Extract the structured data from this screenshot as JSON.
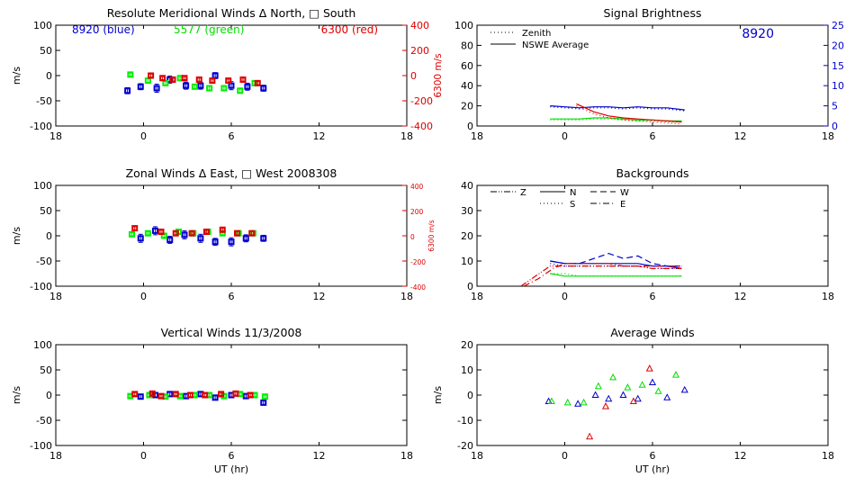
{
  "chart_data": [
    {
      "id": "meridional",
      "type": "scatter",
      "title": "Resolute Meridional Winds Δ North, □ South",
      "title_parts": [
        "Resolute Meridional Winds ",
        "Δ",
        " North, ",
        "□",
        " South"
      ],
      "xlabel": "",
      "ylabel": "m/s",
      "xlim": [
        -6,
        18
      ],
      "xtick_values": [
        -6,
        0,
        6,
        12,
        18
      ],
      "xticks": [
        "18",
        "0",
        "6",
        "12",
        "18"
      ],
      "ylim": [
        -100,
        100
      ],
      "yticks": [
        "100",
        "50",
        "0",
        "-50",
        "-100"
      ],
      "y2": {
        "label": "6300 m/s",
        "lim": [
          -400,
          400
        ],
        "ticks": [
          "400",
          "200",
          "0",
          "-200",
          "-400"
        ],
        "color": "#dd0000"
      },
      "annotations": [
        {
          "text": "8920 (blue)",
          "color": "#0000cc"
        },
        {
          "text": "5577 (green)",
          "color": "#00dd00"
        },
        {
          "text": "6300 (red)",
          "color": "#dd0000"
        }
      ],
      "series": [
        {
          "name": "8920 (blue)",
          "color": "#0000cc",
          "x": [
            -1.1,
            -0.2,
            0.9,
            1.8,
            2.9,
            3.9,
            4.9,
            6.0,
            7.1,
            8.2
          ],
          "y": [
            -30,
            -22,
            -25,
            -8,
            -20,
            -20,
            0,
            -20,
            -22,
            -25
          ],
          "err": [
            6,
            6,
            8,
            7,
            7,
            7,
            6,
            8,
            7,
            6
          ]
        },
        {
          "name": "5577 (green)",
          "color": "#00ee00",
          "x": [
            -0.9,
            0.3,
            1.5,
            2.5,
            3.5,
            4.5,
            5.5,
            6.6,
            7.6
          ],
          "y": [
            2,
            -10,
            -15,
            -5,
            -22,
            -25,
            -25,
            -30,
            -15
          ],
          "err": [
            3,
            4,
            4,
            4,
            4,
            4,
            4,
            4,
            4
          ]
        },
        {
          "name": "6300 (red)",
          "color": "#dd0000",
          "x": [
            0.5,
            1.3,
            2.0,
            2.8,
            3.8,
            4.7,
            5.8,
            6.8,
            7.8
          ],
          "y": [
            0,
            -5,
            -8,
            -5,
            -8,
            -10,
            -10,
            -8,
            -15
          ],
          "err": [
            3,
            3,
            3,
            3,
            3,
            3,
            3,
            3,
            3
          ]
        }
      ]
    },
    {
      "id": "brightness",
      "type": "line",
      "title": "Signal Brightness",
      "xlabel": "",
      "ylabel": "",
      "xlim": [
        -6,
        18
      ],
      "xtick_values": [
        -6,
        0,
        6,
        12,
        18
      ],
      "xticks": [
        "18",
        "0",
        "6",
        "12",
        "18"
      ],
      "ylim": [
        0,
        100
      ],
      "yticks": [
        "100",
        "80",
        "60",
        "40",
        "20",
        "0"
      ],
      "y2": {
        "label": "",
        "lim": [
          0,
          25
        ],
        "ticks": [
          "25",
          "20",
          "15",
          "10",
          "5",
          "0"
        ],
        "color": "#0000cc"
      },
      "annotations": [
        {
          "text": "8920",
          "color": "#0000cc"
        }
      ],
      "legend": [
        "Zenith",
        "NSWE Average"
      ],
      "series": [
        {
          "name": "8920 NSWE Average",
          "color": "#0000cc",
          "style": "solid",
          "x": [
            -1,
            0,
            1,
            2,
            3,
            4,
            5,
            6,
            7,
            8.2
          ],
          "y": [
            20,
            19,
            18,
            19,
            19,
            18,
            19,
            18,
            18,
            16
          ]
        },
        {
          "name": "8920 Zenith",
          "color": "#0000cc",
          "style": "dot",
          "x": [
            -1,
            0,
            1,
            2,
            3,
            4,
            5,
            6,
            7,
            8.2
          ],
          "y": [
            19,
            18,
            17,
            18,
            18,
            17,
            18,
            17,
            17,
            15
          ]
        },
        {
          "name": "5577 NSWE Average",
          "color": "#00dd00",
          "style": "solid",
          "x": [
            -1,
            0,
            1,
            2,
            3,
            4,
            5,
            6,
            7,
            8
          ],
          "y": [
            7,
            7,
            7,
            8,
            8,
            7,
            6,
            6,
            5,
            5
          ]
        },
        {
          "name": "5577 Zenith",
          "color": "#00dd00",
          "style": "dot",
          "x": [
            -1,
            0,
            1,
            2,
            3,
            4,
            5,
            6,
            7,
            8
          ],
          "y": [
            6,
            6,
            6,
            7,
            7,
            6,
            5,
            5,
            4,
            4
          ]
        },
        {
          "name": "6300 NSWE Average",
          "color": "#dd0000",
          "style": "solid",
          "x": [
            0.8,
            2,
            3,
            4,
            5,
            6,
            7,
            8
          ],
          "y": [
            22,
            14,
            10,
            8,
            7,
            6,
            5,
            4
          ]
        },
        {
          "name": "6300 Zenith",
          "color": "#dd0000",
          "style": "dot",
          "x": [
            0.8,
            2,
            3,
            4,
            5,
            6,
            7,
            8
          ],
          "y": [
            20,
            12,
            8,
            6,
            5,
            4,
            3,
            2
          ]
        }
      ]
    },
    {
      "id": "zonal",
      "type": "scatter",
      "title": "Zonal Winds Δ East, □ West 2008308",
      "title_parts": [
        "Zonal Winds ",
        "Δ",
        " East, ",
        "□",
        " West 2008308"
      ],
      "xlabel": "",
      "ylabel": "m/s",
      "xlim": [
        -6,
        18
      ],
      "xtick_values": [
        -6,
        0,
        6,
        12,
        18
      ],
      "xticks": [
        "18",
        "0",
        "6",
        "12",
        "18"
      ],
      "ylim": [
        -100,
        100
      ],
      "yticks": [
        "100",
        "50",
        "0",
        "-50",
        "-100"
      ],
      "y2": {
        "label": "6300 m/s",
        "lim": [
          -400,
          400
        ],
        "ticks": [
          "400",
          "200",
          "0",
          "-200",
          "-400"
        ],
        "color": "#dd0000"
      },
      "series": [
        {
          "name": "8920 (blue)",
          "color": "#0000cc",
          "x": [
            -0.2,
            0.8,
            1.8,
            2.8,
            3.9,
            4.9,
            6.0,
            7.0,
            8.2
          ],
          "y": [
            -5,
            10,
            -8,
            2,
            -5,
            -12,
            -12,
            -5,
            -5
          ],
          "err": [
            8,
            8,
            7,
            8,
            8,
            7,
            8,
            7,
            6
          ]
        },
        {
          "name": "5577 (green)",
          "color": "#00ee00",
          "x": [
            -0.8,
            0.3,
            1.4,
            2.4,
            3.4,
            4.4,
            5.4,
            6.5,
            7.5
          ],
          "y": [
            3,
            5,
            0,
            8,
            5,
            8,
            5,
            5,
            5
          ],
          "err": [
            3,
            3,
            3,
            3,
            3,
            3,
            3,
            3,
            3
          ]
        },
        {
          "name": "6300 (red)",
          "color": "#dd0000",
          "x": [
            -0.6,
            1.2,
            2.2,
            3.3,
            4.3,
            5.4,
            6.4,
            7.4
          ],
          "y": [
            15,
            8,
            5,
            5,
            8,
            12,
            5,
            5
          ],
          "err": [
            3,
            3,
            3,
            3,
            3,
            3,
            3,
            3
          ]
        }
      ]
    },
    {
      "id": "backgrounds",
      "type": "line",
      "title": "Backgrounds",
      "xlabel": "",
      "ylabel": "",
      "xlim": [
        -6,
        18
      ],
      "xtick_values": [
        -6,
        0,
        6,
        12,
        18
      ],
      "xticks": [
        "18",
        "0",
        "6",
        "12",
        "18"
      ],
      "ylim": [
        0,
        40
      ],
      "yticks": [
        "40",
        "30",
        "20",
        "10",
        "0"
      ],
      "legend": [
        "Z",
        "N",
        "W",
        "S",
        "E"
      ],
      "series": [
        {
          "name": "8920 W",
          "color": "#0000cc",
          "style": "dash",
          "x": [
            -1,
            0,
            1,
            2,
            3,
            4,
            5,
            6,
            7,
            8
          ],
          "y": [
            10,
            9,
            9,
            11,
            13,
            11,
            12,
            9,
            8,
            8
          ]
        },
        {
          "name": "8920 N",
          "color": "#0000cc",
          "style": "solid",
          "x": [
            -1,
            0,
            1,
            2,
            3,
            4,
            5,
            6,
            7,
            8
          ],
          "y": [
            10,
            9,
            9,
            9,
            9,
            9,
            9,
            8,
            8,
            7
          ]
        },
        {
          "name": "8920 S",
          "color": "#0000cc",
          "style": "dot",
          "x": [
            -1,
            0,
            1,
            2,
            3,
            4,
            5,
            6,
            7,
            8
          ],
          "y": [
            9,
            8,
            8,
            8,
            8,
            8,
            8,
            7,
            7,
            7
          ]
        },
        {
          "name": "6300 Z",
          "color": "#dd0000",
          "style": "dashdotdot",
          "x": [
            -3,
            -2,
            -1,
            0,
            1,
            2,
            3,
            4,
            5,
            6,
            7,
            8
          ],
          "y": [
            0,
            4,
            8,
            8,
            8,
            8,
            8,
            8,
            8,
            7,
            7,
            7
          ]
        },
        {
          "name": "6300 E",
          "color": "#dd0000",
          "style": "dashdot",
          "x": [
            -2.8,
            -1.8,
            -0.8,
            0,
            1,
            2,
            3,
            4,
            5,
            6,
            7,
            8
          ],
          "y": [
            0,
            3,
            7,
            9,
            9,
            9,
            9,
            8,
            8,
            8,
            8,
            8
          ]
        },
        {
          "name": "5577 N",
          "color": "#00dd00",
          "style": "solid",
          "x": [
            -1,
            0,
            1,
            2,
            3,
            4,
            5,
            6,
            7,
            8
          ],
          "y": [
            5,
            4,
            4,
            4,
            4,
            4,
            4,
            4,
            4,
            4
          ]
        },
        {
          "name": "5577 S",
          "color": "#00dd00",
          "style": "dot",
          "x": [
            -1,
            0,
            1,
            2,
            3,
            4,
            5,
            6,
            7,
            8
          ],
          "y": [
            5,
            5,
            4,
            4,
            4,
            4,
            4,
            4,
            4,
            4
          ]
        }
      ]
    },
    {
      "id": "vertical",
      "type": "scatter",
      "title": "Vertical Winds 11/3/2008",
      "xlabel": "UT (hr)",
      "ylabel": "m/s",
      "xlim": [
        -6,
        18
      ],
      "xtick_values": [
        -6,
        0,
        6,
        12,
        18
      ],
      "xticks": [
        "18",
        "0",
        "6",
        "12",
        "18"
      ],
      "ylim": [
        -100,
        100
      ],
      "yticks": [
        "100",
        "50",
        "0",
        "-50",
        "-100"
      ],
      "series": [
        {
          "name": "8920 (blue)",
          "color": "#0000cc",
          "x": [
            -0.2,
            0.8,
            1.8,
            2.9,
            3.9,
            4.9,
            6.0,
            7.0,
            8.2
          ],
          "y": [
            -3,
            0,
            2,
            -2,
            2,
            -5,
            0,
            -2,
            -15
          ],
          "err": [
            4,
            4,
            4,
            4,
            4,
            4,
            4,
            4,
            4
          ]
        },
        {
          "name": "5577 (green)",
          "color": "#00ee00",
          "x": [
            -0.9,
            0.4,
            1.5,
            2.5,
            3.5,
            4.5,
            5.5,
            6.6,
            7.6,
            8.3
          ],
          "y": [
            -2,
            0,
            -3,
            -2,
            0,
            0,
            -2,
            2,
            0,
            -3
          ],
          "err": [
            3,
            3,
            3,
            3,
            3,
            3,
            3,
            3,
            3,
            3
          ]
        },
        {
          "name": "6300 (red)",
          "color": "#dd0000",
          "x": [
            -0.6,
            0.6,
            1.2,
            2.2,
            3.2,
            4.2,
            5.3,
            6.3,
            7.3
          ],
          "y": [
            2,
            3,
            -2,
            2,
            0,
            0,
            2,
            3,
            0
          ],
          "err": [
            3,
            3,
            3,
            3,
            3,
            3,
            3,
            3,
            3
          ]
        }
      ]
    },
    {
      "id": "average",
      "type": "scatter",
      "title": "Average Winds",
      "xlabel": "UT (hr)",
      "ylabel": "m/s",
      "xlim": [
        -6,
        18
      ],
      "xtick_values": [
        -6,
        0,
        6,
        12,
        18
      ],
      "xticks": [
        "18",
        "0",
        "6",
        "12",
        "18"
      ],
      "ylim": [
        -20,
        20
      ],
      "yticks": [
        "20",
        "10",
        "0",
        "-10",
        "-20"
      ],
      "series": [
        {
          "name": "8920 (blue)",
          "color": "#0000cc",
          "marker": "triangle",
          "x": [
            -1.1,
            0.9,
            2.1,
            3.0,
            4.0,
            5.0,
            6.0,
            7.0,
            8.2
          ],
          "y": [
            -2.5,
            -3.5,
            0,
            -1.5,
            0,
            -1.5,
            5,
            -1,
            2
          ]
        },
        {
          "name": "5577 (green)",
          "color": "#00dd00",
          "marker": "triangle",
          "x": [
            -0.9,
            0.2,
            1.3,
            2.3,
            3.3,
            4.3,
            5.3,
            6.4,
            7.6
          ],
          "y": [
            -2.5,
            -3,
            -3,
            3.5,
            7,
            3,
            4,
            1.5,
            8
          ]
        },
        {
          "name": "6300 (red)",
          "color": "#dd0000",
          "marker": "triangle",
          "x": [
            1.7,
            2.8,
            4.7,
            5.8
          ],
          "y": [
            -16.5,
            -4.5,
            -2.5,
            10.5
          ]
        }
      ]
    }
  ]
}
